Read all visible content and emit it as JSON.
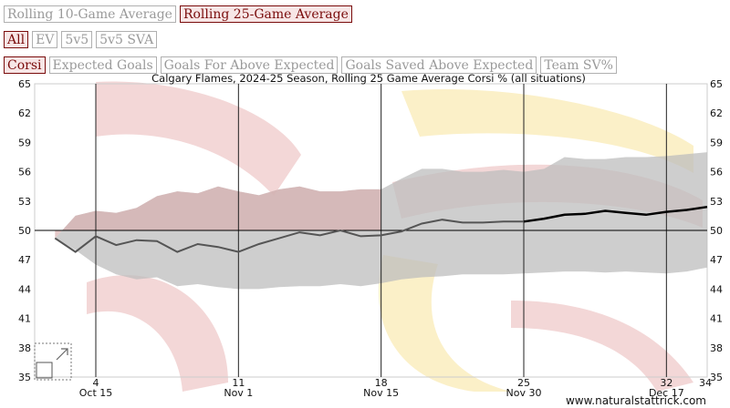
{
  "buttons": {
    "row1": [
      {
        "label": "Rolling 10-Game Average",
        "active": false
      },
      {
        "label": "Rolling 25-Game Average",
        "active": true
      }
    ],
    "row2": [
      {
        "label": "All",
        "active": true
      },
      {
        "label": "EV",
        "active": false
      },
      {
        "label": "5v5",
        "active": false
      },
      {
        "label": "5v5 SVA",
        "active": false
      }
    ],
    "row3": [
      {
        "label": "Corsi",
        "active": true
      },
      {
        "label": "Expected Goals",
        "active": false
      },
      {
        "label": "Goals For Above Expected",
        "active": false
      },
      {
        "label": "Goals Saved Above Expected",
        "active": false
      },
      {
        "label": "Team SV%",
        "active": false
      }
    ]
  },
  "watermark": "www.naturalstattrick.com",
  "colors": {
    "line": "#555555",
    "line_recent": "#000000",
    "band": "#bdbdbd",
    "band_upper_early": "#d9b0b0",
    "gridline": "#222222",
    "active_text": "#7a0c0c",
    "logo_red": "#f3d7d7",
    "logo_yellow": "#fbf0c8"
  },
  "chart_data": {
    "type": "line",
    "title": "Calgary Flames, 2024-25 Season, Rolling 25 Game Average Corsi % (all situations)",
    "x_ticks": [
      4,
      11,
      18,
      25,
      32,
      34
    ],
    "date_labels": [
      {
        "game": 4,
        "label": "Oct 15"
      },
      {
        "game": 11,
        "label": "Nov 1"
      },
      {
        "game": 18,
        "label": "Nov 15"
      },
      {
        "game": 25,
        "label": "Nov 30"
      },
      {
        "game": 32,
        "label": "Dec 17"
      }
    ],
    "xlim": [
      1,
      34
    ],
    "ylim": [
      35,
      65
    ],
    "y_ticks": [
      35,
      38,
      41,
      44,
      47,
      50,
      53,
      56,
      59,
      62,
      65
    ],
    "reference_line": 50,
    "highlight_from_game": 25,
    "series": [
      {
        "x": [
          2,
          3,
          4,
          5,
          6,
          7,
          8,
          9,
          10,
          11,
          12,
          13,
          14,
          15,
          16,
          17,
          18,
          19,
          20,
          21,
          22,
          23,
          24,
          25,
          26,
          27,
          28,
          29,
          30,
          31,
          32,
          33,
          34
        ],
        "values": [
          49.2,
          47.8,
          49.4,
          48.5,
          49.0,
          48.9,
          47.8,
          48.6,
          48.3,
          47.8,
          48.6,
          49.2,
          49.8,
          49.5,
          50.0,
          49.4,
          49.5,
          49.9,
          50.7,
          51.1,
          50.8,
          50.8,
          50.9,
          50.9,
          51.2,
          51.6,
          51.7,
          52.0,
          51.8,
          51.6,
          51.9,
          52.1,
          52.4
        ]
      }
    ],
    "band": {
      "x": [
        2,
        3,
        4,
        5,
        6,
        7,
        8,
        9,
        10,
        11,
        12,
        13,
        14,
        15,
        16,
        17,
        18,
        19,
        20,
        21,
        22,
        23,
        24,
        25,
        26,
        27,
        28,
        29,
        30,
        31,
        32,
        33,
        34
      ],
      "upper": [
        49.2,
        51.5,
        52.0,
        51.8,
        52.3,
        53.5,
        54.0,
        53.8,
        54.5,
        54.0,
        53.6,
        54.2,
        54.5,
        54.0,
        54.0,
        54.2,
        54.2,
        55.3,
        56.3,
        56.3,
        56.0,
        56.0,
        56.2,
        56.0,
        56.3,
        57.5,
        57.3,
        57.3,
        57.5,
        57.5,
        57.6,
        57.8,
        58.0
      ],
      "lower": [
        49.2,
        48.0,
        46.5,
        45.5,
        45.0,
        45.2,
        44.3,
        44.5,
        44.2,
        44.0,
        44.0,
        44.2,
        44.3,
        44.3,
        44.5,
        44.3,
        44.6,
        45.0,
        45.2,
        45.3,
        45.5,
        45.5,
        45.5,
        45.6,
        45.7,
        45.8,
        45.8,
        45.7,
        45.8,
        45.7,
        45.6,
        45.8,
        46.2
      ]
    },
    "band_upper_highlight_until_game": 18,
    "grid": true,
    "xlabel": "",
    "ylabel": ""
  }
}
